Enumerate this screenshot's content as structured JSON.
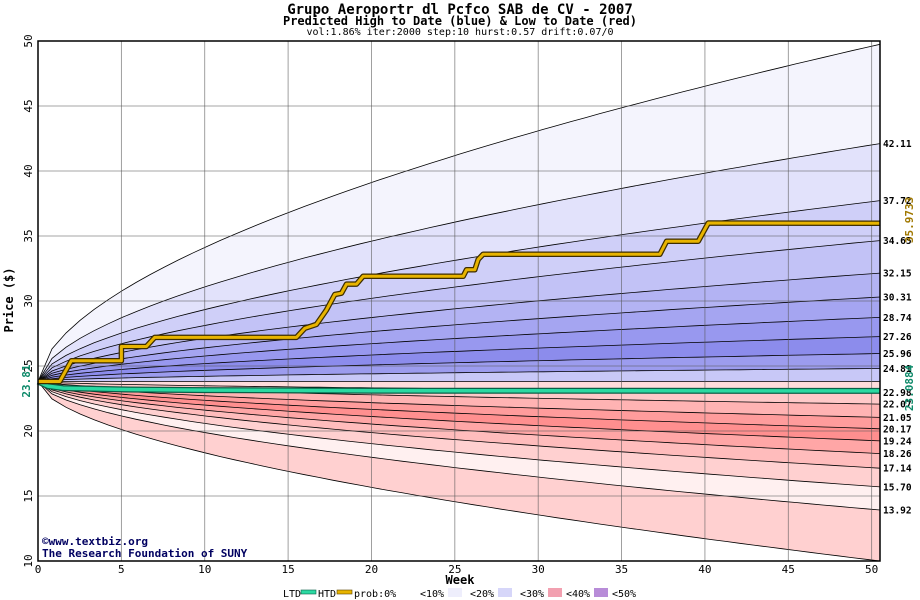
{
  "header": {
    "title": "Grupo Aeroportr dl Pcfco SAB de CV  - 2007",
    "subtitle": "Predicted High to Date (blue) &  Low to Date (red)",
    "params": "vol:1.86% iter:2000 step:10 hurst:0.57 drift:0.07/0"
  },
  "watermark": {
    "line1": "©www.textbiz.org",
    "line2": "The Research Foundation of SUNY"
  },
  "chart_data": {
    "type": "area",
    "xlabel": "Week",
    "ylabel": "Price ($)",
    "xlim": [
      0,
      50.5
    ],
    "ylim": [
      10,
      50
    ],
    "x_ticks": [
      0,
      5,
      10,
      15,
      20,
      25,
      30,
      35,
      40,
      45,
      50
    ],
    "y_ticks": [
      10,
      15,
      20,
      25,
      30,
      35,
      40,
      45,
      50
    ],
    "grid": true,
    "start_price": 23.81,
    "start_label": "23.81",
    "high_label": "35.9733",
    "low_label": "23.0884",
    "high_final": 35.9733,
    "low_final": 23.0884,
    "quantile_labels": [
      "42.11",
      "37.72",
      "34.65",
      "32.15",
      "30.31",
      "28.74",
      "27.26",
      "25.96",
      "24.81",
      "22.98",
      "22.07",
      "21.05",
      "20.17",
      "19.24",
      "18.26",
      "17.14",
      "15.70",
      "13.92"
    ],
    "upper_bands": [
      49.75,
      42.11,
      37.72,
      34.65,
      32.15,
      30.31,
      28.74,
      27.26,
      25.96,
      24.81,
      23.81
    ],
    "lower_bands": [
      23.81,
      22.98,
      22.07,
      21.05,
      20.17,
      19.24,
      18.26,
      17.14,
      15.7,
      13.92,
      10.0
    ],
    "outer_upper_final": 49.75,
    "outer_lower_final": 10.0,
    "high_path": [
      [
        0,
        23.81
      ],
      [
        1.3,
        23.81
      ],
      [
        2,
        25.4
      ],
      [
        5,
        25.4
      ],
      [
        5,
        26.5
      ],
      [
        6.5,
        26.5
      ],
      [
        7,
        27.2
      ],
      [
        15.5,
        27.2
      ],
      [
        16,
        27.9
      ],
      [
        16.7,
        28.2
      ],
      [
        17.3,
        29.3
      ],
      [
        17.8,
        30.5
      ],
      [
        18.2,
        30.6
      ],
      [
        18.5,
        31.3
      ],
      [
        19.1,
        31.3
      ],
      [
        19.5,
        31.9
      ],
      [
        25.5,
        31.9
      ],
      [
        25.7,
        32.4
      ],
      [
        26.2,
        32.4
      ],
      [
        26.4,
        33.2
      ],
      [
        26.7,
        33.6
      ],
      [
        37.3,
        33.6
      ],
      [
        37.7,
        34.6
      ],
      [
        39.6,
        34.6
      ],
      [
        40.2,
        36.0
      ],
      [
        50.5,
        35.9733
      ]
    ],
    "low_path": [
      [
        0,
        23.81
      ],
      [
        0.6,
        23.45
      ],
      [
        1.5,
        23.3
      ],
      [
        5,
        23.2
      ],
      [
        10,
        23.15
      ],
      [
        20,
        23.1
      ],
      [
        50.5,
        23.0884
      ]
    ],
    "legend": {
      "ltd": "LTD",
      "htd": "HTD",
      "prob": "prob:0%",
      "p10": "<10%",
      "p20": "<20%",
      "p30": "<30%",
      "p40": "<40%",
      "p50": "<50%"
    },
    "colors": {
      "low_line": "#2bd9a2",
      "high_line": "#e8b400",
      "label_high": "#a07800",
      "label_low": "#0e8a6a",
      "upper_fills": [
        "#f4f4fd",
        "#e2e2fb",
        "#cfcff8",
        "#c2c2f6",
        "#b3b3f3",
        "#a5a5f1",
        "#9898ef",
        "#8c8cec",
        "#9c9cee",
        "#c8c8f7"
      ],
      "lower_fills": [
        "#ffdcdc",
        "#ffc9c9",
        "#ffb3b3",
        "#ff9c9c",
        "#ff8f8f",
        "#ffa6a6",
        "#ffbcbc",
        "#ffd0d0",
        "#fff0f0"
      ]
    }
  }
}
